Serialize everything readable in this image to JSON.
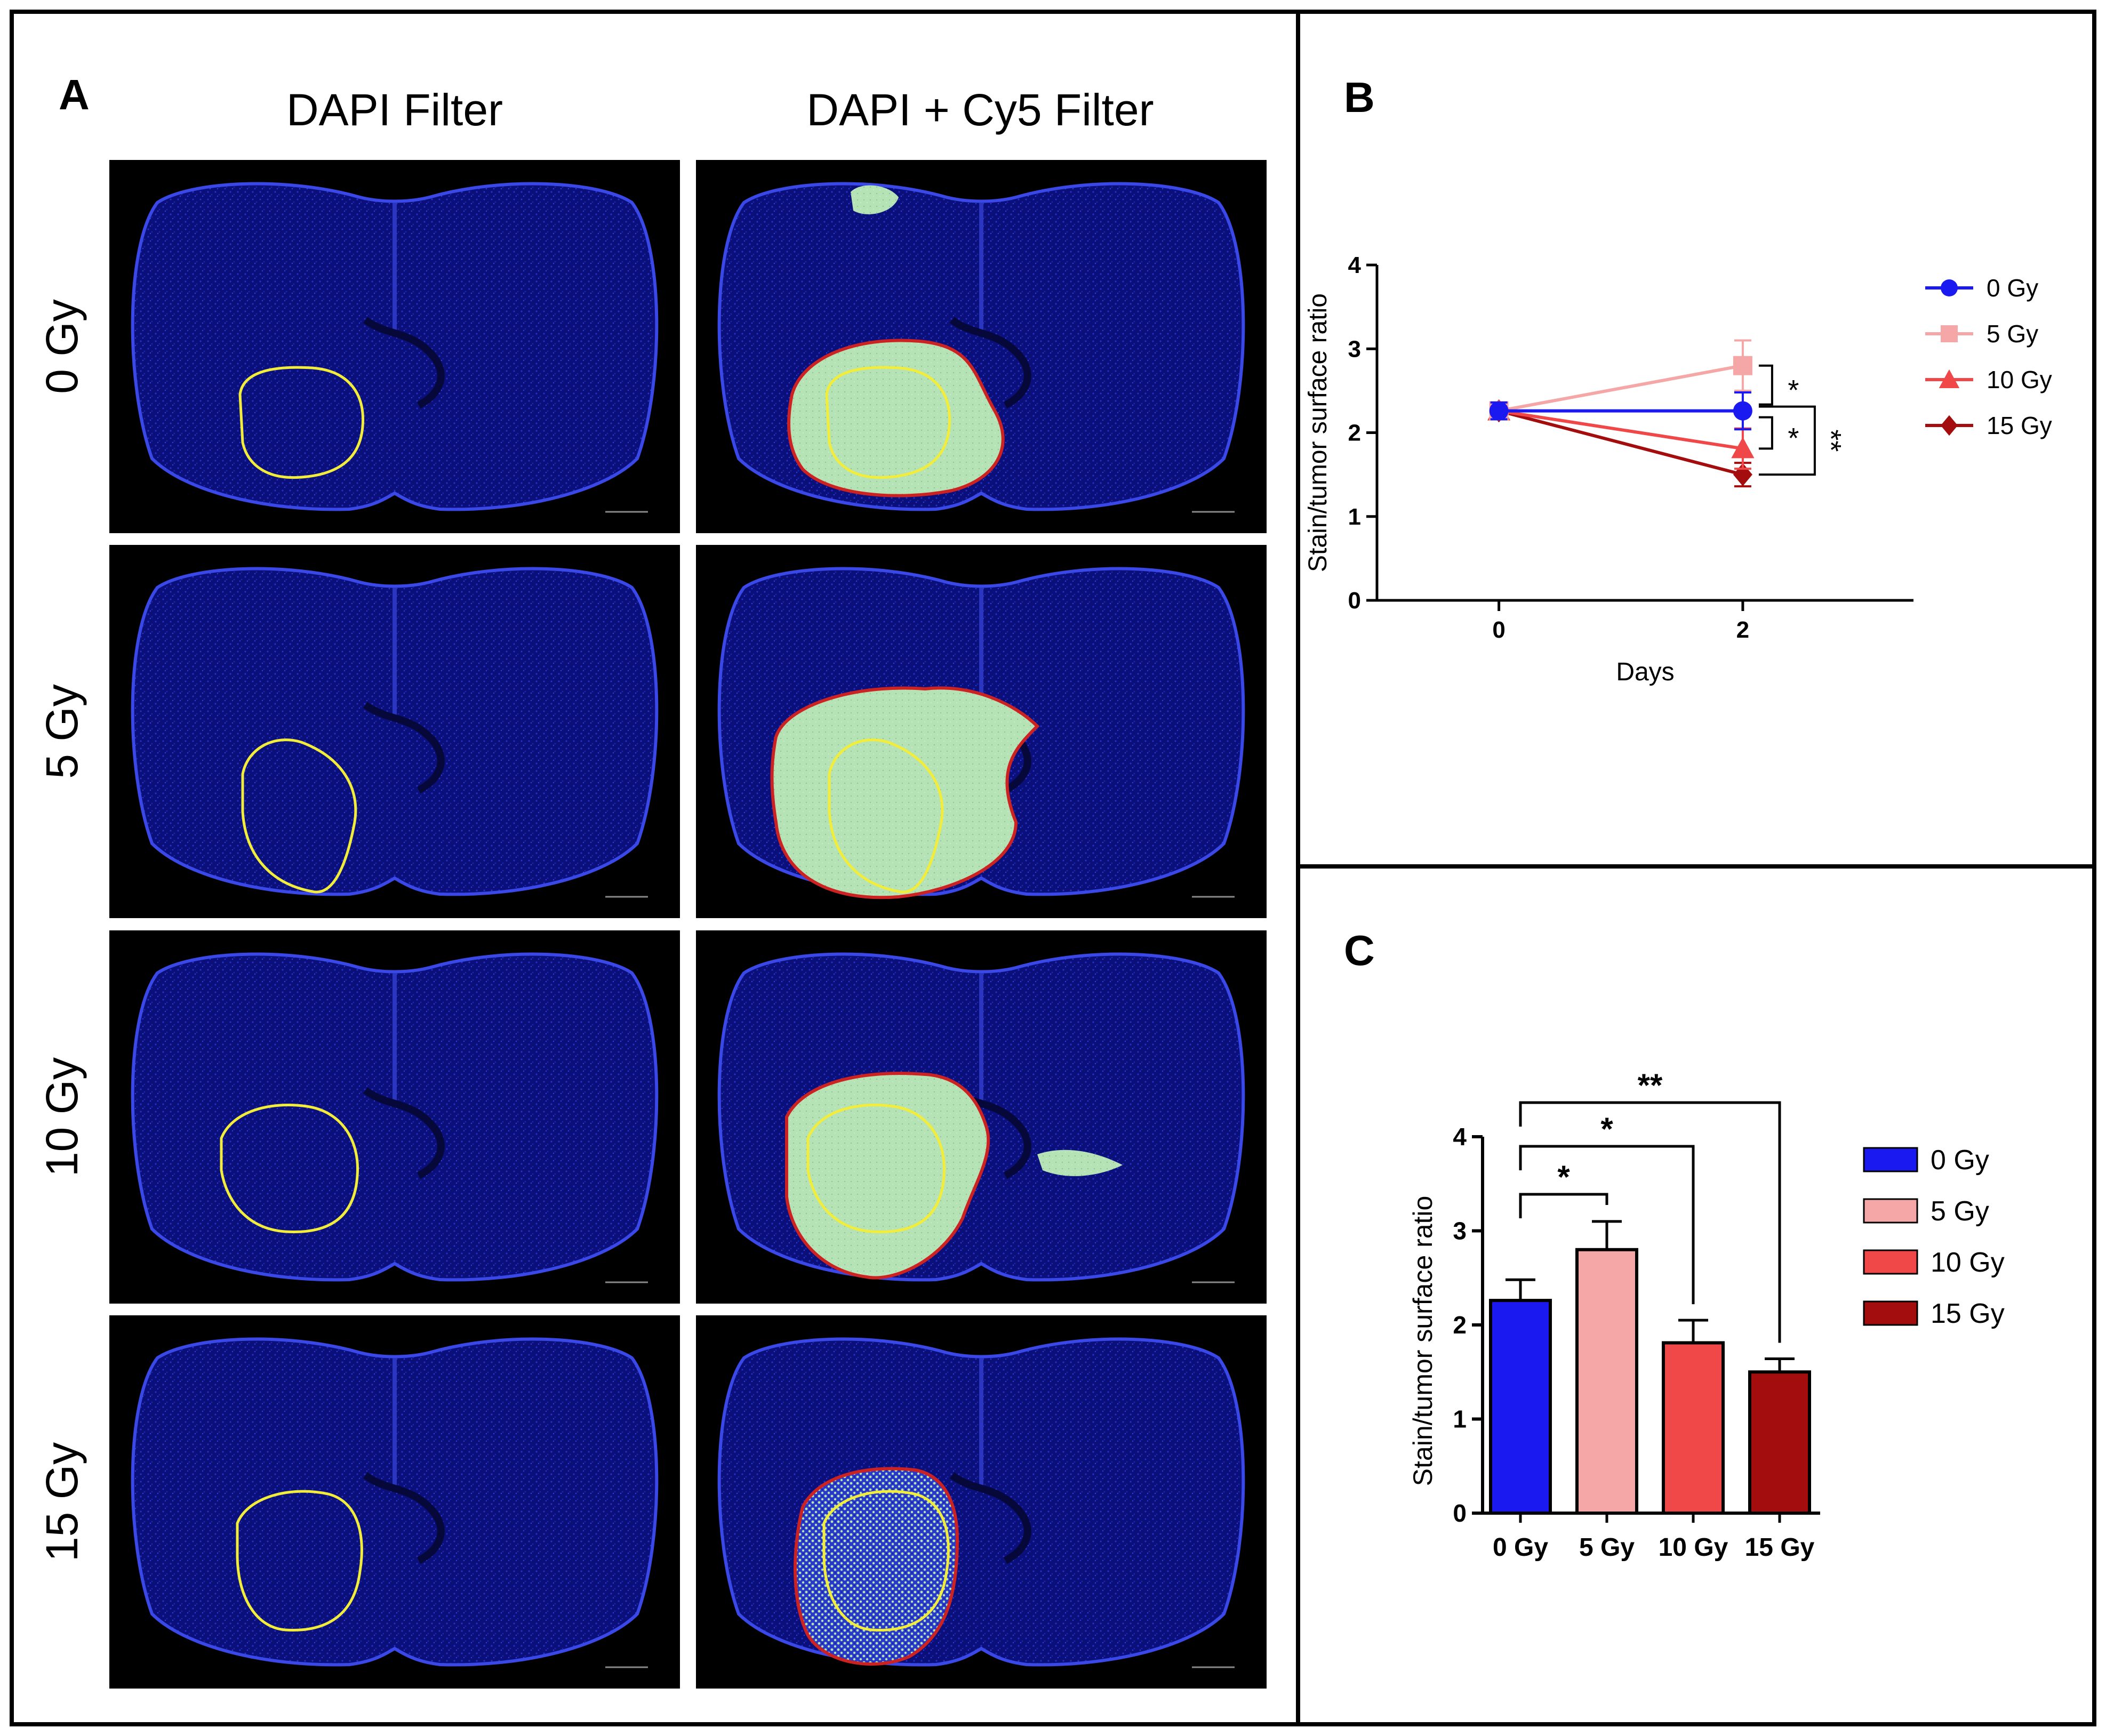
{
  "panel_a": {
    "letter": "A",
    "columns": [
      "DAPI Filter",
      "DAPI + Cy5 Filter"
    ],
    "rows": [
      "0 Gy",
      "5 Gy",
      "10 Gy",
      "15 Gy"
    ]
  },
  "panel_b": {
    "letter": "B"
  },
  "panel_c": {
    "letter": "C"
  },
  "colors": {
    "0 Gy": "#1a1af0",
    "5 Gy": "#f5a6a6",
    "10 Gy": "#f04848",
    "15 Gy": "#a30d0d",
    "dapi_bg": "#0b0f7a",
    "tumor_outline": "#f2ec3a",
    "stain_green": "#b6e3b6",
    "stain_outline": "#cc2222"
  },
  "chart_data": [
    {
      "panel": "B",
      "type": "line",
      "xlabel": "Days",
      "ylabel": "Stain/tumor surface ratio",
      "x": [
        0,
        2
      ],
      "x_ticks": [
        "0",
        "2"
      ],
      "xlim": [
        -1,
        3.4
      ],
      "ylim": [
        0,
        4
      ],
      "y_ticks": [
        "0",
        "1",
        "2",
        "3",
        "4"
      ],
      "legend_position": "right",
      "series": [
        {
          "name": "0 Gy",
          "marker": "circle",
          "values": [
            2.26,
            2.26
          ],
          "errors": [
            0.1,
            0.22
          ]
        },
        {
          "name": "5 Gy",
          "marker": "square",
          "values": [
            2.26,
            2.8
          ],
          "errors": [
            0.1,
            0.3
          ]
        },
        {
          "name": "10 Gy",
          "marker": "triangle",
          "values": [
            2.26,
            1.81
          ],
          "errors": [
            0.1,
            0.24
          ]
        },
        {
          "name": "15 Gy",
          "marker": "diamond",
          "values": [
            2.26,
            1.5
          ],
          "errors": [
            0.1,
            0.14
          ]
        }
      ],
      "annotations": [
        {
          "between": [
            "5 Gy",
            "0 Gy"
          ],
          "label": "*"
        },
        {
          "between": [
            "0 Gy",
            "10 Gy"
          ],
          "label": "*"
        },
        {
          "between": [
            "0 Gy",
            "15 Gy"
          ],
          "label": "**"
        }
      ]
    },
    {
      "panel": "C",
      "type": "bar",
      "ylabel": "Stain/tumor surface ratio",
      "categories": [
        "0 Gy",
        "5 Gy",
        "10 Gy",
        "15 Gy"
      ],
      "values": [
        2.26,
        2.8,
        1.81,
        1.5
      ],
      "errors": [
        0.22,
        0.3,
        0.24,
        0.14
      ],
      "ylim": [
        0,
        4
      ],
      "y_ticks": [
        "0",
        "1",
        "2",
        "3",
        "4"
      ],
      "legend_position": "right",
      "legend": [
        "0 Gy",
        "5 Gy",
        "10 Gy",
        "15 Gy"
      ],
      "annotations": [
        {
          "from": "0 Gy",
          "to": "5 Gy",
          "label": "*"
        },
        {
          "from": "0 Gy",
          "to": "10 Gy",
          "label": "*"
        },
        {
          "from": "0 Gy",
          "to": "15 Gy",
          "label": "**"
        }
      ]
    }
  ]
}
